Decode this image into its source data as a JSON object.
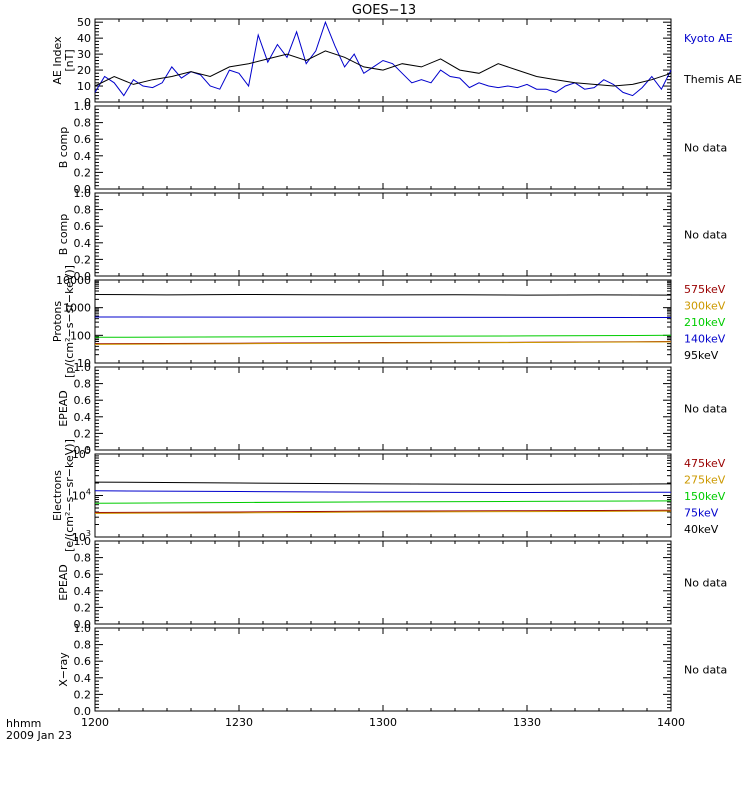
{
  "figure": {
    "title": "GOES−13",
    "time_unit_label": "hhmm",
    "date_label": "2009 Jan 23",
    "x_ticks": [
      "1200",
      "1230",
      "1300",
      "1330",
      "1400"
    ]
  },
  "chart_data": [
    {
      "type": "line",
      "ylabel_lines": [
        "AE Index",
        "[nT]"
      ],
      "yscale": "linear",
      "ylim": [
        0,
        52
      ],
      "y_ticks": [
        "0",
        "10",
        "20",
        "30",
        "40",
        "50"
      ],
      "x_range_minutes": [
        0,
        120
      ],
      "series": [
        {
          "name": "Kyoto AE",
          "color": "#0000cc",
          "x": [
            0,
            2,
            4,
            6,
            8,
            10,
            12,
            14,
            16,
            18,
            20,
            22,
            24,
            26,
            28,
            30,
            32,
            34,
            36,
            38,
            40,
            42,
            44,
            46,
            48,
            50,
            52,
            54,
            56,
            58,
            60,
            62,
            64,
            66,
            68,
            70,
            72,
            74,
            76,
            78,
            80,
            82,
            84,
            86,
            88,
            90,
            92,
            94,
            96,
            98,
            100,
            102,
            104,
            106,
            108,
            110,
            112,
            114,
            116,
            118,
            120
          ],
          "y": [
            6,
            16,
            12,
            4,
            14,
            10,
            9,
            12,
            22,
            15,
            19,
            17,
            10,
            8,
            20,
            18,
            10,
            42,
            25,
            36,
            28,
            44,
            24,
            32,
            50,
            35,
            22,
            30,
            18,
            22,
            26,
            24,
            18,
            12,
            14,
            12,
            20,
            16,
            15,
            9,
            12,
            10,
            9,
            10,
            9,
            11,
            8,
            8,
            6,
            10,
            12,
            8,
            9,
            14,
            11,
            6,
            4,
            9,
            16,
            8,
            20
          ]
        },
        {
          "name": "Themis AE",
          "color": "#000000",
          "x": [
            0,
            4,
            8,
            12,
            16,
            20,
            24,
            28,
            32,
            36,
            40,
            44,
            48,
            52,
            56,
            60,
            64,
            68,
            72,
            76,
            80,
            84,
            88,
            92,
            96,
            100,
            104,
            108,
            112,
            116,
            120
          ],
          "y": [
            10,
            16,
            11,
            14,
            16,
            19,
            16,
            22,
            24,
            27,
            30,
            26,
            32,
            28,
            22,
            20,
            24,
            22,
            27,
            20,
            18,
            24,
            20,
            16,
            14,
            12,
            11,
            10,
            11,
            14,
            18
          ]
        }
      ]
    },
    {
      "type": "line",
      "ylabel_lines": [
        "B comp"
      ],
      "yscale": "linear",
      "ylim": [
        0,
        1
      ],
      "y_ticks": [
        "0.0",
        "0.2",
        "0.4",
        "0.6",
        "0.8",
        "1.0"
      ],
      "no_data_label": "No data",
      "series": []
    },
    {
      "type": "line",
      "ylabel_lines": [
        "B comp"
      ],
      "yscale": "linear",
      "ylim": [
        0,
        1
      ],
      "y_ticks": [
        "0.0",
        "0.2",
        "0.4",
        "0.6",
        "0.8",
        "1.0"
      ],
      "no_data_label": "No data",
      "series": []
    },
    {
      "type": "line",
      "ylabel_lines": [
        "Protons",
        "[p/(cm²−s−sr−keV)]"
      ],
      "yscale": "log",
      "ylim": [
        10,
        10000
      ],
      "y_ticks": [
        "10",
        "100",
        "1000",
        "10000"
      ],
      "series": [
        {
          "name": "575keV",
          "color": "#990000",
          "x": [
            0,
            30,
            60,
            90,
            120
          ],
          "y": [
            50,
            52,
            55,
            56,
            60
          ]
        },
        {
          "name": "300keV",
          "color": "#cc9900",
          "x": [
            0,
            30,
            60,
            90,
            120
          ],
          "y": [
            47,
            50,
            53,
            55,
            58
          ]
        },
        {
          "name": "210keV",
          "color": "#00cc00",
          "x": [
            0,
            30,
            60,
            90,
            120
          ],
          "y": [
            85,
            88,
            92,
            95,
            100
          ]
        },
        {
          "name": "140keV",
          "color": "#0000cc",
          "x": [
            0,
            30,
            60,
            90,
            120
          ],
          "y": [
            460,
            455,
            450,
            445,
            440
          ]
        },
        {
          "name": "95keV",
          "color": "#000000",
          "x": [
            0,
            15,
            30,
            45,
            60,
            75,
            90,
            105,
            120
          ],
          "y": [
            3000,
            2900,
            3000,
            2950,
            2900,
            2950,
            2850,
            2900,
            2850
          ]
        }
      ]
    },
    {
      "type": "line",
      "ylabel_lines": [
        "EPEAD"
      ],
      "yscale": "linear",
      "ylim": [
        0,
        1
      ],
      "y_ticks": [
        "0.0",
        "0.2",
        "0.4",
        "0.6",
        "0.8",
        "1.0"
      ],
      "no_data_label": "No data",
      "series": []
    },
    {
      "type": "line",
      "ylabel_lines": [
        "Electrons",
        "[e/(cm²−s−sr−keV)]"
      ],
      "yscale": "log",
      "ylim": [
        1000,
        100000
      ],
      "y_ticks": [
        {
          "base": "10",
          "exp": "3",
          "value": 1000
        },
        {
          "base": "10",
          "exp": "4",
          "value": 10000
        },
        {
          "base": "10",
          "exp": "5",
          "value": 100000
        }
      ],
      "series": [
        {
          "name": "475keV",
          "color": "#990000",
          "x": [
            0,
            30,
            60,
            90,
            120
          ],
          "y": [
            3900,
            4000,
            4200,
            4300,
            4400
          ]
        },
        {
          "name": "275keV",
          "color": "#cc9900",
          "x": [
            0,
            30,
            60,
            90,
            120
          ],
          "y": [
            3700,
            3800,
            4000,
            4100,
            4200
          ]
        },
        {
          "name": "150keV",
          "color": "#00cc00",
          "x": [
            0,
            30,
            60,
            90,
            120
          ],
          "y": [
            6500,
            6800,
            7000,
            7200,
            7400
          ]
        },
        {
          "name": "75keV",
          "color": "#0000cc",
          "x": [
            0,
            30,
            60,
            90,
            120
          ],
          "y": [
            13000,
            12500,
            12000,
            11800,
            12000
          ]
        },
        {
          "name": "40keV",
          "color": "#000000",
          "x": [
            0,
            30,
            60,
            90,
            120
          ],
          "y": [
            21000,
            20000,
            19000,
            18500,
            19000
          ]
        }
      ]
    },
    {
      "type": "line",
      "ylabel_lines": [
        "EPEAD"
      ],
      "yscale": "linear",
      "ylim": [
        0,
        1
      ],
      "y_ticks": [
        "0.0",
        "0.2",
        "0.4",
        "0.6",
        "0.8",
        "1.0"
      ],
      "no_data_label": "No data",
      "series": []
    },
    {
      "type": "line",
      "ylabel_lines": [
        "X−ray"
      ],
      "yscale": "linear",
      "ylim": [
        0,
        1
      ],
      "y_ticks": [
        "0.0",
        "0.2",
        "0.4",
        "0.6",
        "0.8",
        "1.0"
      ],
      "no_data_label": "No data",
      "series": []
    }
  ]
}
